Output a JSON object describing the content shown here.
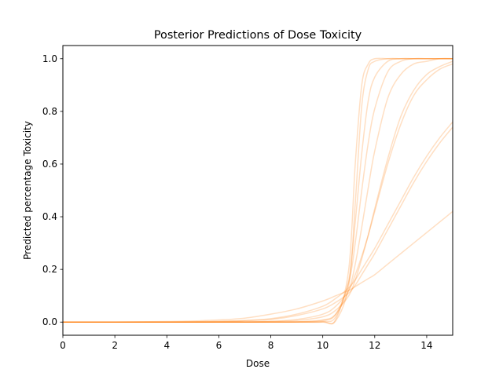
{
  "chart_data": {
    "type": "line",
    "title": "Posterior Predictions of Dose Toxicity",
    "xlabel": "Dose",
    "ylabel": "Predicted percentage Toxicity",
    "xlim": [
      0,
      15
    ],
    "ylim": [
      -0.05,
      1.05
    ],
    "x_ticks": [
      0,
      2,
      4,
      6,
      8,
      10,
      12,
      14
    ],
    "x_tick_labels": [
      "0",
      "2",
      "4",
      "6",
      "8",
      "10",
      "12",
      "14"
    ],
    "y_ticks": [
      0.0,
      0.2,
      0.4,
      0.6,
      0.8,
      1.0
    ],
    "y_tick_labels": [
      "0.0",
      "0.2",
      "0.4",
      "0.6",
      "0.8",
      "1.0"
    ],
    "grid": false,
    "legend": "none",
    "line_color": "#ff7f0e",
    "line_opacity": 0.1,
    "x": [
      0,
      1,
      2,
      3,
      4,
      5,
      6,
      7,
      8,
      9,
      10,
      10.5,
      11,
      11.25,
      11.5,
      11.75,
      12,
      12.5,
      13,
      13.5,
      14,
      14.5,
      15
    ],
    "series": [
      {
        "values": [
          0,
          0,
          0,
          0,
          0,
          0,
          0,
          0,
          0,
          0,
          0,
          0.005,
          0.14,
          0.45,
          0.82,
          0.96,
          0.99,
          1.0,
          1.0,
          1.0,
          1.0,
          1.0,
          1.0
        ]
      },
      {
        "values": [
          0,
          0,
          0,
          0,
          0,
          0,
          0,
          0,
          0,
          0,
          0.002,
          0.02,
          0.16,
          0.38,
          0.64,
          0.84,
          0.93,
          0.99,
          1.0,
          1.0,
          1.0,
          1.0,
          1.0
        ]
      },
      {
        "values": [
          0,
          0,
          0,
          0,
          0,
          0,
          0,
          0,
          0,
          0.001,
          0.008,
          0.03,
          0.12,
          0.22,
          0.36,
          0.51,
          0.65,
          0.85,
          0.94,
          0.98,
          0.99,
          1.0,
          1.0
        ]
      },
      {
        "values": [
          0,
          0,
          0,
          0,
          0,
          0,
          0,
          0.001,
          0.003,
          0.01,
          0.03,
          0.06,
          0.12,
          0.18,
          0.25,
          0.33,
          0.42,
          0.6,
          0.75,
          0.86,
          0.92,
          0.96,
          0.98
        ]
      },
      {
        "values": [
          0,
          0,
          0,
          0,
          0,
          0.001,
          0.003,
          0.006,
          0.013,
          0.03,
          0.06,
          0.09,
          0.13,
          0.16,
          0.2,
          0.24,
          0.28,
          0.37,
          0.46,
          0.55,
          0.63,
          0.7,
          0.76
        ]
      },
      {
        "values": [
          0,
          0,
          0,
          0.001,
          0.002,
          0.004,
          0.008,
          0.015,
          0.03,
          0.05,
          0.08,
          0.1,
          0.12,
          0.135,
          0.15,
          0.165,
          0.18,
          0.22,
          0.26,
          0.3,
          0.34,
          0.38,
          0.42
        ]
      },
      {
        "values": [
          0,
          0,
          0,
          0,
          0,
          0,
          0,
          0,
          0,
          0.001,
          0.006,
          0.03,
          0.15,
          0.3,
          0.5,
          0.68,
          0.81,
          0.95,
          0.99,
          1.0,
          1.0,
          1.0,
          1.0
        ]
      },
      {
        "values": [
          0,
          0,
          0,
          0,
          0,
          0,
          0,
          0,
          0.002,
          0.006,
          0.02,
          0.045,
          0.1,
          0.16,
          0.24,
          0.33,
          0.43,
          0.62,
          0.78,
          0.88,
          0.94,
          0.97,
          0.99
        ]
      },
      {
        "values": [
          0,
          0,
          0,
          0,
          0,
          0,
          0.002,
          0.005,
          0.01,
          0.025,
          0.05,
          0.075,
          0.11,
          0.14,
          0.18,
          0.22,
          0.26,
          0.35,
          0.44,
          0.53,
          0.61,
          0.68,
          0.74
        ]
      },
      {
        "values": [
          0,
          0,
          0,
          0,
          0,
          0,
          0,
          0,
          0,
          0,
          0.001,
          0.01,
          0.2,
          0.6,
          0.9,
          0.98,
          1.0,
          1.0,
          1.0,
          1.0,
          1.0,
          1.0,
          1.0
        ]
      }
    ]
  }
}
